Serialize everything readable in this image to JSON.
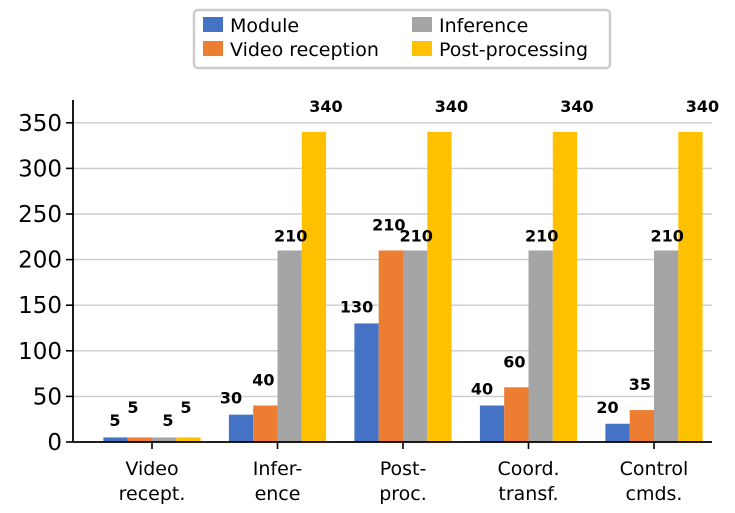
{
  "chart_data": {
    "type": "bar",
    "title": "",
    "xlabel": "",
    "ylabel": "",
    "categories": [
      [
        "Video",
        "recept."
      ],
      [
        "Infer-",
        "ence"
      ],
      [
        "Post-",
        "proc."
      ],
      [
        "Coord.",
        "transf."
      ],
      [
        "Control",
        "cmds."
      ]
    ],
    "series": [
      {
        "name": "Module",
        "color": "#4472C4",
        "values": [
          5,
          30,
          130,
          40,
          20
        ]
      },
      {
        "name": "Video reception",
        "color": "#ED7D31",
        "values": [
          5,
          40,
          210,
          60,
          35
        ]
      },
      {
        "name": "Inference",
        "color": "#A5A5A5",
        "values": [
          5,
          210,
          210,
          210,
          210
        ]
      },
      {
        "name": "Post-processing",
        "color": "#FFC000",
        "values": [
          5,
          340,
          340,
          340,
          340
        ]
      }
    ],
    "ylim": [
      0,
      375
    ],
    "yticks": [
      0,
      50,
      100,
      150,
      200,
      250,
      300,
      350
    ],
    "grid": "horizontal",
    "legend": {
      "position": "top-center",
      "columns": 2,
      "order": [
        0,
        1,
        2,
        3
      ]
    },
    "data_labels": [
      [
        {
          "text": "5",
          "cat": 0,
          "series": 0
        },
        {
          "text": "5",
          "cat": 0,
          "series": 1
        },
        {
          "text": "5",
          "cat": 0,
          "series": 2
        },
        {
          "text": "5",
          "cat": 0,
          "series": 3
        }
      ],
      [
        {
          "text": "30",
          "cat": 1,
          "series": 0
        },
        {
          "text": "40",
          "cat": 1,
          "series": 1
        },
        {
          "text": "210",
          "cat": 1,
          "series": 2
        },
        {
          "text": "340",
          "cat": 1,
          "series": 3
        }
      ],
      [
        {
          "text": "130",
          "cat": 2,
          "series": 0
        },
        {
          "text": "210",
          "cat": 2,
          "series": 1
        },
        {
          "text": "210",
          "cat": 2,
          "series": 2
        },
        {
          "text": "340",
          "cat": 2,
          "series": 3
        }
      ],
      [
        {
          "text": "40",
          "cat": 3,
          "series": 0
        },
        {
          "text": "60",
          "cat": 3,
          "series": 1
        },
        {
          "text": "210",
          "cat": 3,
          "series": 2
        },
        {
          "text": "340",
          "cat": 3,
          "series": 3
        }
      ],
      [
        {
          "text": "20",
          "cat": 4,
          "series": 0
        },
        {
          "text": "35",
          "cat": 4,
          "series": 1
        },
        {
          "text": "210",
          "cat": 4,
          "series": 2
        },
        {
          "text": "340",
          "cat": 4,
          "series": 3
        }
      ]
    ]
  }
}
